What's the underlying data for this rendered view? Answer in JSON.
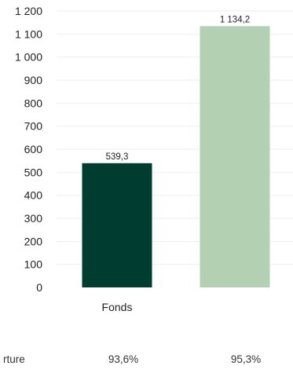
{
  "chart_data": {
    "type": "bar",
    "categories": [
      "Fonds",
      ""
    ],
    "values": [
      539.3,
      1134.2
    ],
    "data_labels": [
      "539,3",
      "1 134,2"
    ],
    "bar_colors": [
      "#003d31",
      "#b3d0b2"
    ],
    "title": "",
    "xlabel": "",
    "ylabel": "",
    "ylim": [
      0,
      1200
    ],
    "y_ticks": [
      0,
      100,
      200,
      300,
      400,
      500,
      600,
      700,
      800,
      900,
      1000,
      1100,
      1200
    ],
    "y_tick_labels": [
      "0",
      "100",
      "200",
      "300",
      "400",
      "500",
      "600",
      "700",
      "800",
      "900",
      "1 000",
      "1 100",
      "1 200"
    ],
    "grid": true
  },
  "coverage_row": {
    "label": "rture",
    "values": [
      "93,6%",
      "95,3%"
    ]
  }
}
